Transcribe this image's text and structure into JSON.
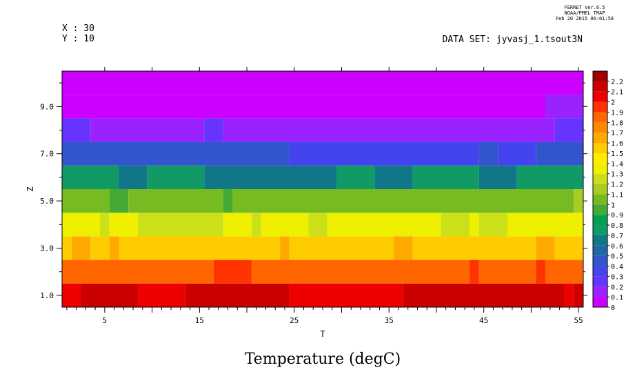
{
  "header": {
    "ferret_line1": "FERRET  Ver.6.5",
    "ferret_line2": "NOAA/PMEL TMAP",
    "ferret_line3": "Feb 20 2015 06:01:58",
    "x_info": "X : 30",
    "y_info": "Y : 10",
    "dataset": "DATA SET: jyvasj_1.tsout3N"
  },
  "chart_data": {
    "type": "heatmap",
    "title": "Temperature (degC)",
    "xlabel": "T",
    "ylabel": "Z",
    "xlim": [
      0.5,
      55.5
    ],
    "ylim": [
      0.5,
      10.5
    ],
    "x_ticks": [
      5,
      15,
      25,
      35,
      45,
      55
    ],
    "x_tick_labels": [
      "5",
      "15",
      "25",
      "35",
      "45",
      "55"
    ],
    "y_ticks": [
      1,
      3,
      5,
      7,
      9
    ],
    "y_tick_labels": [
      "1.0",
      "3.0",
      "5.0",
      "7.0",
      "9.0"
    ],
    "colorbar_levels": [
      0,
      0.1,
      0.2,
      0.3,
      0.4,
      0.5,
      0.6,
      0.7,
      0.8,
      0.9,
      1,
      1.1,
      1.2,
      1.3,
      1.4,
      1.5,
      1.6,
      1.7,
      1.8,
      1.9,
      2,
      2.1,
      2.2
    ],
    "colorbar_labels": [
      "0",
      "0.1",
      "0.2",
      "0.3",
      "0.4",
      "0.5",
      "0.6",
      "0.7",
      "0.8",
      "0.9",
      "1",
      "1.1",
      "1.2",
      "1.3",
      "1.4",
      "1.5",
      "1.6",
      "1.7",
      "1.8",
      "1.9",
      "2",
      "2.1",
      "2.2"
    ],
    "colorbar_colors": [
      "#cc00ff",
      "#9922ff",
      "#6633ff",
      "#4444ee",
      "#3355cc",
      "#2266aa",
      "#117788",
      "#119966",
      "#00a050",
      "#44aa33",
      "#77bb22",
      "#aacc22",
      "#cce01a",
      "#eef000",
      "#ffee00",
      "#ffcc00",
      "#ffaa00",
      "#ff8800",
      "#ff6600",
      "#ff3300",
      "#ee0000",
      "#cc0000",
      "#a00000"
    ],
    "rows": [
      {
        "z": 1,
        "segments": [
          [
            0.5,
            2.5,
            2.0
          ],
          [
            2.5,
            8.5,
            2.1
          ],
          [
            8.5,
            13.5,
            2.0
          ],
          [
            13.5,
            24.5,
            2.1
          ],
          [
            24.5,
            36.5,
            2.0
          ],
          [
            36.5,
            53.5,
            2.1
          ],
          [
            53.5,
            54.5,
            2.0
          ],
          [
            54.5,
            55.5,
            2.1
          ]
        ]
      },
      {
        "z": 2,
        "segments": [
          [
            0.5,
            16.5,
            1.8
          ],
          [
            16.5,
            20.5,
            1.9
          ],
          [
            20.5,
            43.5,
            1.8
          ],
          [
            43.5,
            44.5,
            1.9
          ],
          [
            44.5,
            50.5,
            1.8
          ],
          [
            50.5,
            51.5,
            1.9
          ],
          [
            51.5,
            55.5,
            1.8
          ]
        ]
      },
      {
        "z": 3,
        "segments": [
          [
            0.5,
            1.5,
            1.5
          ],
          [
            1.5,
            3.5,
            1.6
          ],
          [
            3.5,
            5.5,
            1.5
          ],
          [
            5.5,
            6.5,
            1.6
          ],
          [
            6.5,
            23.5,
            1.5
          ],
          [
            23.5,
            24.5,
            1.6
          ],
          [
            24.5,
            35.5,
            1.5
          ],
          [
            35.5,
            37.5,
            1.6
          ],
          [
            37.5,
            50.5,
            1.5
          ],
          [
            50.5,
            52.5,
            1.6
          ],
          [
            52.5,
            55.5,
            1.5
          ]
        ]
      },
      {
        "z": 4,
        "segments": [
          [
            0.5,
            4.5,
            1.3
          ],
          [
            4.5,
            5.5,
            1.2
          ],
          [
            5.5,
            8.5,
            1.3
          ],
          [
            8.5,
            17.5,
            1.2
          ],
          [
            17.5,
            20.5,
            1.3
          ],
          [
            20.5,
            21.5,
            1.2
          ],
          [
            21.5,
            26.5,
            1.3
          ],
          [
            26.5,
            28.5,
            1.2
          ],
          [
            28.5,
            40.5,
            1.3
          ],
          [
            40.5,
            43.5,
            1.2
          ],
          [
            43.5,
            44.5,
            1.3
          ],
          [
            44.5,
            47.5,
            1.2
          ],
          [
            47.5,
            55.5,
            1.3
          ]
        ]
      },
      {
        "z": 5,
        "segments": [
          [
            0.5,
            5.5,
            1.0
          ],
          [
            5.5,
            7.5,
            0.9
          ],
          [
            7.5,
            17.5,
            1.0
          ],
          [
            17.5,
            18.5,
            0.9
          ],
          [
            18.5,
            54.5,
            1.0
          ],
          [
            54.5,
            55.5,
            1.1
          ]
        ]
      },
      {
        "z": 6,
        "segments": [
          [
            0.5,
            6.5,
            0.7
          ],
          [
            6.5,
            9.5,
            0.6
          ],
          [
            9.5,
            15.5,
            0.7
          ],
          [
            15.5,
            29.5,
            0.6
          ],
          [
            29.5,
            33.5,
            0.7
          ],
          [
            33.5,
            37.5,
            0.6
          ],
          [
            37.5,
            44.5,
            0.7
          ],
          [
            44.5,
            48.5,
            0.6
          ],
          [
            48.5,
            55.5,
            0.7
          ]
        ]
      },
      {
        "z": 7,
        "segments": [
          [
            0.5,
            24.5,
            0.4
          ],
          [
            24.5,
            44.5,
            0.3
          ],
          [
            44.5,
            46.5,
            0.4
          ],
          [
            46.5,
            50.5,
            0.3
          ],
          [
            50.5,
            55.5,
            0.4
          ]
        ]
      },
      {
        "z": 8,
        "segments": [
          [
            0.5,
            3.5,
            0.2
          ],
          [
            3.5,
            15.5,
            0.1
          ],
          [
            15.5,
            17.5,
            0.2
          ],
          [
            17.5,
            52.5,
            0.1
          ],
          [
            52.5,
            55.5,
            0.2
          ]
        ]
      },
      {
        "z": 9,
        "segments": [
          [
            0.5,
            51.5,
            0.0
          ],
          [
            51.5,
            55.5,
            0.1
          ]
        ]
      },
      {
        "z": 10,
        "segments": [
          [
            0.5,
            55.5,
            0.0
          ]
        ]
      }
    ]
  }
}
